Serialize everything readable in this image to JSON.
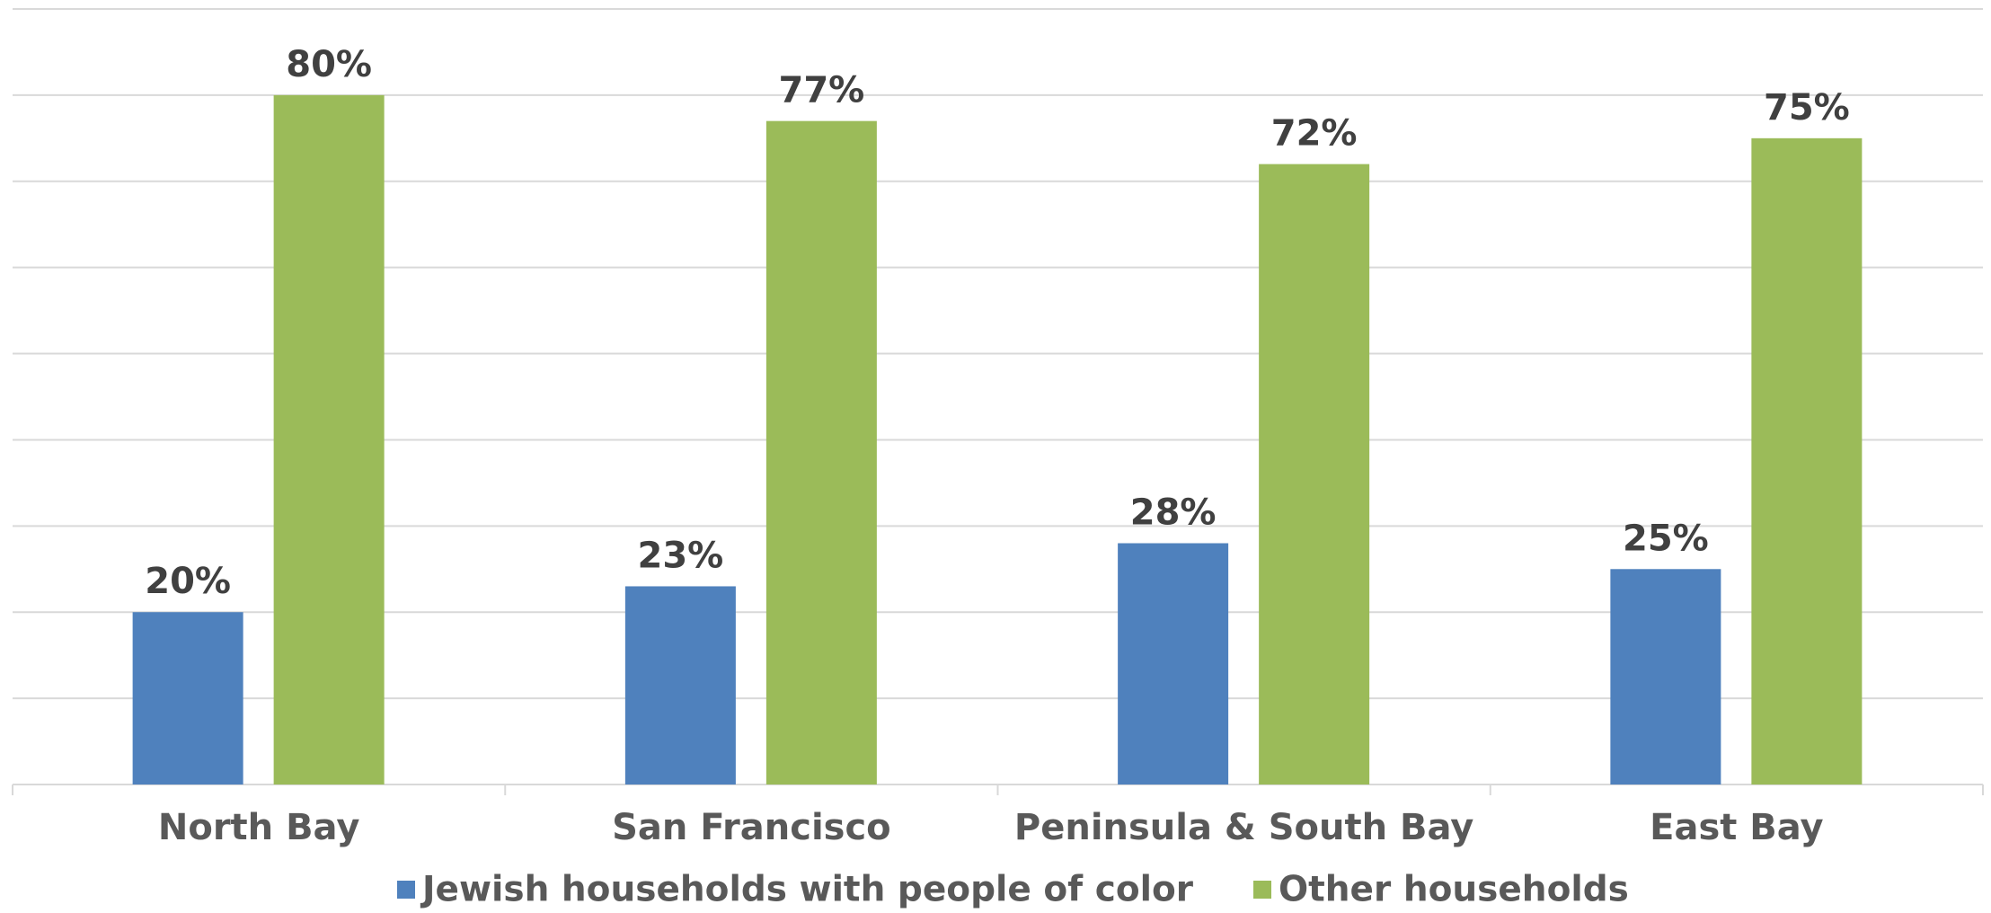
{
  "chart_data": {
    "type": "bar",
    "categories": [
      "North Bay",
      "San Francisco",
      "Peninsula & South Bay",
      "East Bay"
    ],
    "series": [
      {
        "name": "Jewish households with people of color",
        "color": "#4f81bd",
        "values": [
          20,
          23,
          28,
          25
        ],
        "value_labels": [
          "20%",
          "23%",
          "28%",
          "25%"
        ]
      },
      {
        "name": "Other households",
        "color": "#9bbb59",
        "values": [
          80,
          77,
          72,
          75
        ],
        "value_labels": [
          "80%",
          "77%",
          "72%",
          "75%"
        ]
      }
    ],
    "ylim": [
      0,
      90
    ],
    "yticks": [
      0,
      10,
      20,
      30,
      40,
      50,
      60,
      70,
      80,
      90
    ],
    "grid": true,
    "legend": "bottom"
  }
}
